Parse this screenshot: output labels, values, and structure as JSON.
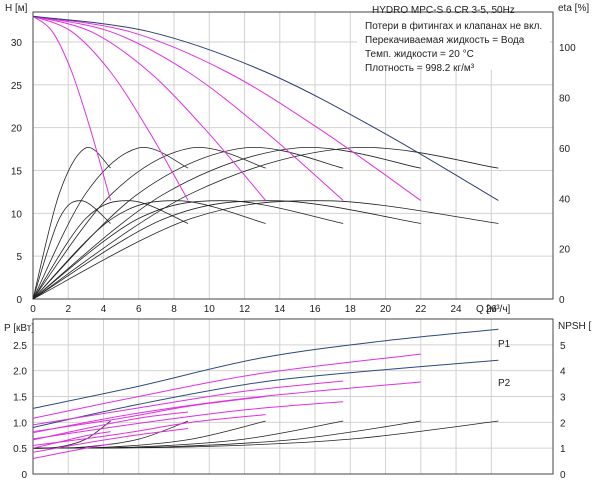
{
  "chart_data": [
    {
      "type": "line",
      "title": "",
      "xlabel": "Q [м³/ч]",
      "ylabel": "H [м]",
      "y2label": "eta [%]",
      "x_ticks": [
        "0",
        "2",
        "4",
        "6",
        "8",
        "10",
        "12",
        "14",
        "16",
        "18",
        "20",
        "22",
        "24",
        "26"
      ],
      "y_ticks": [
        "0",
        "5",
        "10",
        "15",
        "20",
        "25",
        "30"
      ],
      "y2_ticks": [
        "0",
        "20",
        "40",
        "60",
        "80",
        "100"
      ],
      "xlim": [
        0,
        29.5
      ],
      "ylim": [
        0,
        33.5
      ],
      "y2lim": [
        0,
        114
      ],
      "grid": true,
      "annotation": {
        "model": "HYDRO MPC-S 6 CR 3-5, 50Hz",
        "lines": [
          "Потери в фитингах и клапанах не вкл.",
          "Перекачиваемая жидкость = Вода",
          "Темп. жидкости = 20 °C",
          "Плотность = 998.2 кг/м³"
        ]
      },
      "head_series": [
        {
          "x": [
            0,
            1.1,
            2.2,
            3.3,
            4.4
          ],
          "y": [
            33,
            31.2,
            26.5,
            19.5,
            11.5
          ],
          "color": "#e030e0"
        },
        {
          "x": [
            0,
            2.2,
            4.4,
            6.6,
            8.8
          ],
          "y": [
            33,
            31.2,
            26.5,
            19.5,
            11.5
          ],
          "color": "#e030e0"
        },
        {
          "x": [
            0,
            3.3,
            6.6,
            9.9,
            13.2
          ],
          "y": [
            33,
            31.2,
            26.5,
            19.5,
            11.5
          ],
          "color": "#e030e0"
        },
        {
          "x": [
            0,
            4.4,
            8.8,
            13.2,
            17.6
          ],
          "y": [
            33,
            31.2,
            26.5,
            19.5,
            11.5
          ],
          "color": "#e030e0"
        },
        {
          "x": [
            0,
            5.5,
            11.0,
            16.5,
            22.0
          ],
          "y": [
            33,
            31.2,
            26.5,
            19.5,
            11.5
          ],
          "color": "#e030e0"
        },
        {
          "x": [
            0,
            6.6,
            13.2,
            19.8,
            26.4
          ],
          "y": [
            33,
            31.2,
            26.5,
            19.5,
            11.5
          ],
          "color": "#2c3e6e"
        }
      ],
      "eta_series": [
        {
          "x": [
            0,
            1.5,
            3.0,
            4.4
          ],
          "y": [
            0,
            42,
            60,
            52
          ],
          "color": "#222"
        },
        {
          "x": [
            0,
            3.0,
            6.0,
            8.8
          ],
          "y": [
            0,
            42,
            60,
            52
          ],
          "color": "#222"
        },
        {
          "x": [
            0,
            4.5,
            9.0,
            13.2
          ],
          "y": [
            0,
            42,
            60,
            52
          ],
          "color": "#222"
        },
        {
          "x": [
            0,
            6.0,
            12.0,
            17.6
          ],
          "y": [
            0,
            42,
            60,
            52
          ],
          "color": "#222"
        },
        {
          "x": [
            0,
            7.5,
            15.0,
            22.0
          ],
          "y": [
            0,
            42,
            60,
            52
          ],
          "color": "#222"
        },
        {
          "x": [
            0,
            9.0,
            18.0,
            26.4
          ],
          "y": [
            0,
            42,
            60,
            52
          ],
          "color": "#222"
        },
        {
          "x": [
            0,
            1.5,
            2.8,
            4.4
          ],
          "y": [
            0,
            32,
            39,
            30
          ],
          "color": "#222"
        },
        {
          "x": [
            0,
            3.0,
            5.6,
            8.8
          ],
          "y": [
            0,
            32,
            39,
            30
          ],
          "color": "#222"
        },
        {
          "x": [
            0,
            4.5,
            8.4,
            13.2
          ],
          "y": [
            0,
            32,
            39,
            30
          ],
          "color": "#222"
        },
        {
          "x": [
            0,
            6.0,
            11.2,
            17.6
          ],
          "y": [
            0,
            32,
            39,
            30
          ],
          "color": "#222"
        },
        {
          "x": [
            0,
            7.5,
            14.0,
            22.0
          ],
          "y": [
            0,
            32,
            39,
            30
          ],
          "color": "#222"
        },
        {
          "x": [
            0,
            9.0,
            16.8,
            26.4
          ],
          "y": [
            0,
            32,
            39,
            30
          ],
          "color": "#222"
        }
      ]
    },
    {
      "type": "line",
      "title": "",
      "xlabel": "",
      "ylabel": "P [кВт]",
      "y2label": "NPSH [м]",
      "y_ticks": [
        "0",
        "0.5",
        "1.0",
        "1.5",
        "2.0",
        "2.5"
      ],
      "y2_ticks": [
        "0",
        "1",
        "2",
        "3",
        "4",
        "5"
      ],
      "xlim": [
        0,
        29.5
      ],
      "ylim": [
        0,
        3.0
      ],
      "y2lim": [
        0,
        6.0
      ],
      "grid": true,
      "labels": [
        "P1",
        "P2"
      ],
      "power_series": [
        {
          "x": [
            0,
            6,
            13,
            20,
            26.4
          ],
          "y": [
            1.27,
            1.7,
            2.25,
            2.58,
            2.8
          ],
          "color": "#2c4a7a",
          "label": "P1"
        },
        {
          "x": [
            0,
            6,
            13,
            20,
            26.4
          ],
          "y": [
            0.9,
            1.35,
            1.78,
            2.02,
            2.2
          ],
          "color": "#2c4a7a",
          "label": "P2"
        },
        {
          "x": [
            0,
            6,
            13,
            22.0
          ],
          "y": [
            1.08,
            1.5,
            1.95,
            2.32
          ],
          "color": "#e030e0"
        },
        {
          "x": [
            0,
            6,
            13,
            22.0
          ],
          "y": [
            0.8,
            1.18,
            1.5,
            1.78
          ],
          "color": "#e030e0"
        },
        {
          "x": [
            0,
            6,
            12,
            17.6
          ],
          "y": [
            0.95,
            1.28,
            1.6,
            1.8
          ],
          "color": "#e030e0"
        },
        {
          "x": [
            0,
            6,
            12,
            17.6
          ],
          "y": [
            0.68,
            0.98,
            1.24,
            1.4
          ],
          "color": "#e030e0"
        },
        {
          "x": [
            0,
            5,
            9,
            13.2
          ],
          "y": [
            0.82,
            1.08,
            1.32,
            1.5
          ],
          "color": "#e030e0"
        },
        {
          "x": [
            0,
            5,
            9,
            13.2
          ],
          "y": [
            0.55,
            0.78,
            1.0,
            1.15
          ],
          "color": "#e030e0"
        },
        {
          "x": [
            0,
            3,
            6,
            8.8
          ],
          "y": [
            0.66,
            0.88,
            1.08,
            1.2
          ],
          "color": "#e030e0"
        },
        {
          "x": [
            0,
            3,
            6,
            8.8
          ],
          "y": [
            0.42,
            0.6,
            0.76,
            0.88
          ],
          "color": "#e030e0"
        },
        {
          "x": [
            0,
            1.5,
            3,
            4.4
          ],
          "y": [
            0.5,
            0.62,
            0.74,
            0.82
          ],
          "color": "#e030e0"
        },
        {
          "x": [
            0,
            1.5,
            3,
            4.4
          ],
          "y": [
            0.3,
            0.4,
            0.5,
            0.58
          ],
          "color": "#e030e0"
        }
      ],
      "npsh_series": [
        {
          "x": [
            0,
            1.5,
            3.0,
            4.4
          ],
          "y": [
            1.0,
            1.05,
            1.35,
            2.05
          ],
          "color": "#222"
        },
        {
          "x": [
            0,
            3.0,
            6.0,
            8.8
          ],
          "y": [
            1.0,
            1.05,
            1.35,
            2.05
          ],
          "color": "#222"
        },
        {
          "x": [
            0,
            4.5,
            9.0,
            13.2
          ],
          "y": [
            1.0,
            1.05,
            1.35,
            2.05
          ],
          "color": "#222"
        },
        {
          "x": [
            0,
            6.0,
            12.0,
            17.6
          ],
          "y": [
            1.0,
            1.05,
            1.35,
            2.05
          ],
          "color": "#222"
        },
        {
          "x": [
            0,
            7.5,
            15.0,
            22.0
          ],
          "y": [
            1.0,
            1.05,
            1.35,
            2.05
          ],
          "color": "#222"
        },
        {
          "x": [
            0,
            9.0,
            18.0,
            26.4
          ],
          "y": [
            1.0,
            1.05,
            1.35,
            2.05
          ],
          "color": "#222"
        }
      ]
    }
  ]
}
